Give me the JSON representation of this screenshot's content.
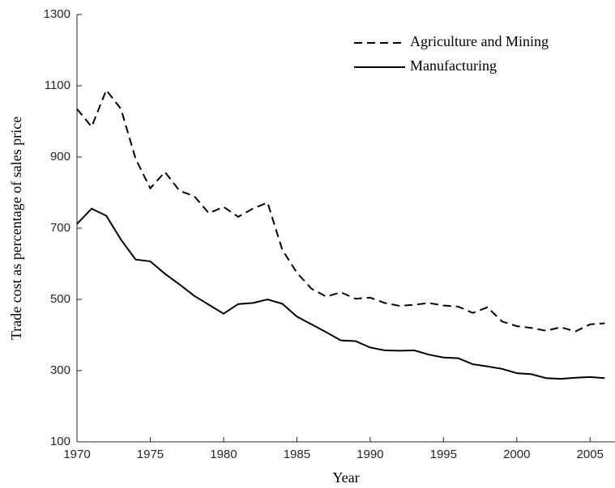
{
  "chart_data": {
    "type": "line",
    "xlabel": "Year",
    "ylabel": "Trade cost as percentage of sales price",
    "x": [
      1970,
      1971,
      1972,
      1973,
      1974,
      1975,
      1976,
      1977,
      1978,
      1979,
      1980,
      1981,
      1982,
      1983,
      1984,
      1985,
      1986,
      1987,
      1988,
      1989,
      1990,
      1991,
      1992,
      1993,
      1994,
      1995,
      1996,
      1997,
      1998,
      1999,
      2000,
      2001,
      2002,
      2003,
      2004,
      2005,
      2006
    ],
    "series": [
      {
        "name": "Agriculture and Mining",
        "color": "#000000",
        "dash": "dashed",
        "values": [
          1035,
          985,
          1088,
          1035,
          895,
          812,
          858,
          805,
          790,
          742,
          760,
          732,
          755,
          772,
          640,
          575,
          530,
          508,
          520,
          502,
          505,
          490,
          482,
          485,
          490,
          483,
          480,
          462,
          478,
          438,
          425,
          420,
          412,
          422,
          410,
          430,
          433
        ]
      },
      {
        "name": "Manufacturing",
        "color": "#000000",
        "dash": "solid",
        "values": [
          712,
          755,
          735,
          668,
          612,
          607,
          572,
          542,
          510,
          485,
          460,
          487,
          490,
          500,
          488,
          452,
          430,
          408,
          385,
          383,
          365,
          357,
          356,
          357,
          345,
          337,
          335,
          318,
          312,
          305,
          293,
          290,
          279,
          277,
          280,
          282,
          279
        ]
      }
    ],
    "xlim": [
      1970,
      2006.7
    ],
    "xticks": [
      1970,
      1975,
      1980,
      1985,
      1990,
      1995,
      2000,
      2005
    ],
    "ylim": [
      100,
      1300
    ],
    "yticks": [
      100,
      300,
      500,
      700,
      900,
      1100,
      1300
    ],
    "legend": "upper right"
  }
}
